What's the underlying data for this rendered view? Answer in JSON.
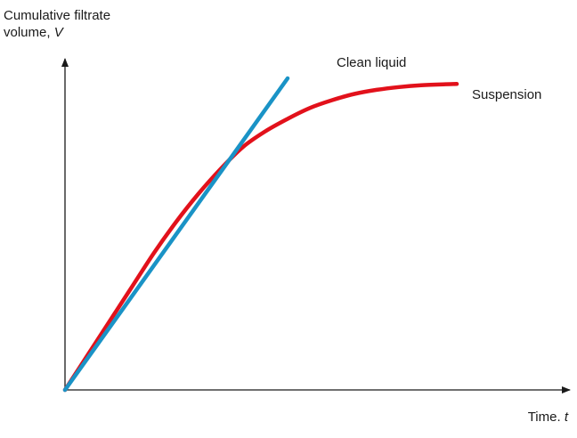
{
  "chart_data": {
    "type": "line",
    "ylabel": {
      "lines": [
        "Cumulative filtrate",
        "volume,"
      ],
      "var": "V"
    },
    "xlabel": {
      "text": "Time.",
      "var": "t"
    },
    "xlim": [
      0,
      100
    ],
    "ylim": [
      0,
      100
    ],
    "grid": false,
    "series": [
      {
        "name": "Clean liquid",
        "color": "#1a93c6",
        "x": [
          0,
          50
        ],
        "y": [
          0,
          100
        ]
      },
      {
        "name": "Suspension",
        "color": "#e2111b",
        "x": [
          0,
          5,
          10,
          15,
          20,
          25,
          30,
          35,
          40,
          45,
          50,
          55,
          60,
          65,
          70,
          75,
          80,
          85,
          88
        ],
        "y": [
          0,
          11,
          22,
          33,
          44,
          54,
          63,
          71,
          78,
          83,
          87,
          90.5,
          93,
          95,
          96.3,
          97.2,
          97.8,
          98.1,
          98.2
        ]
      }
    ]
  }
}
